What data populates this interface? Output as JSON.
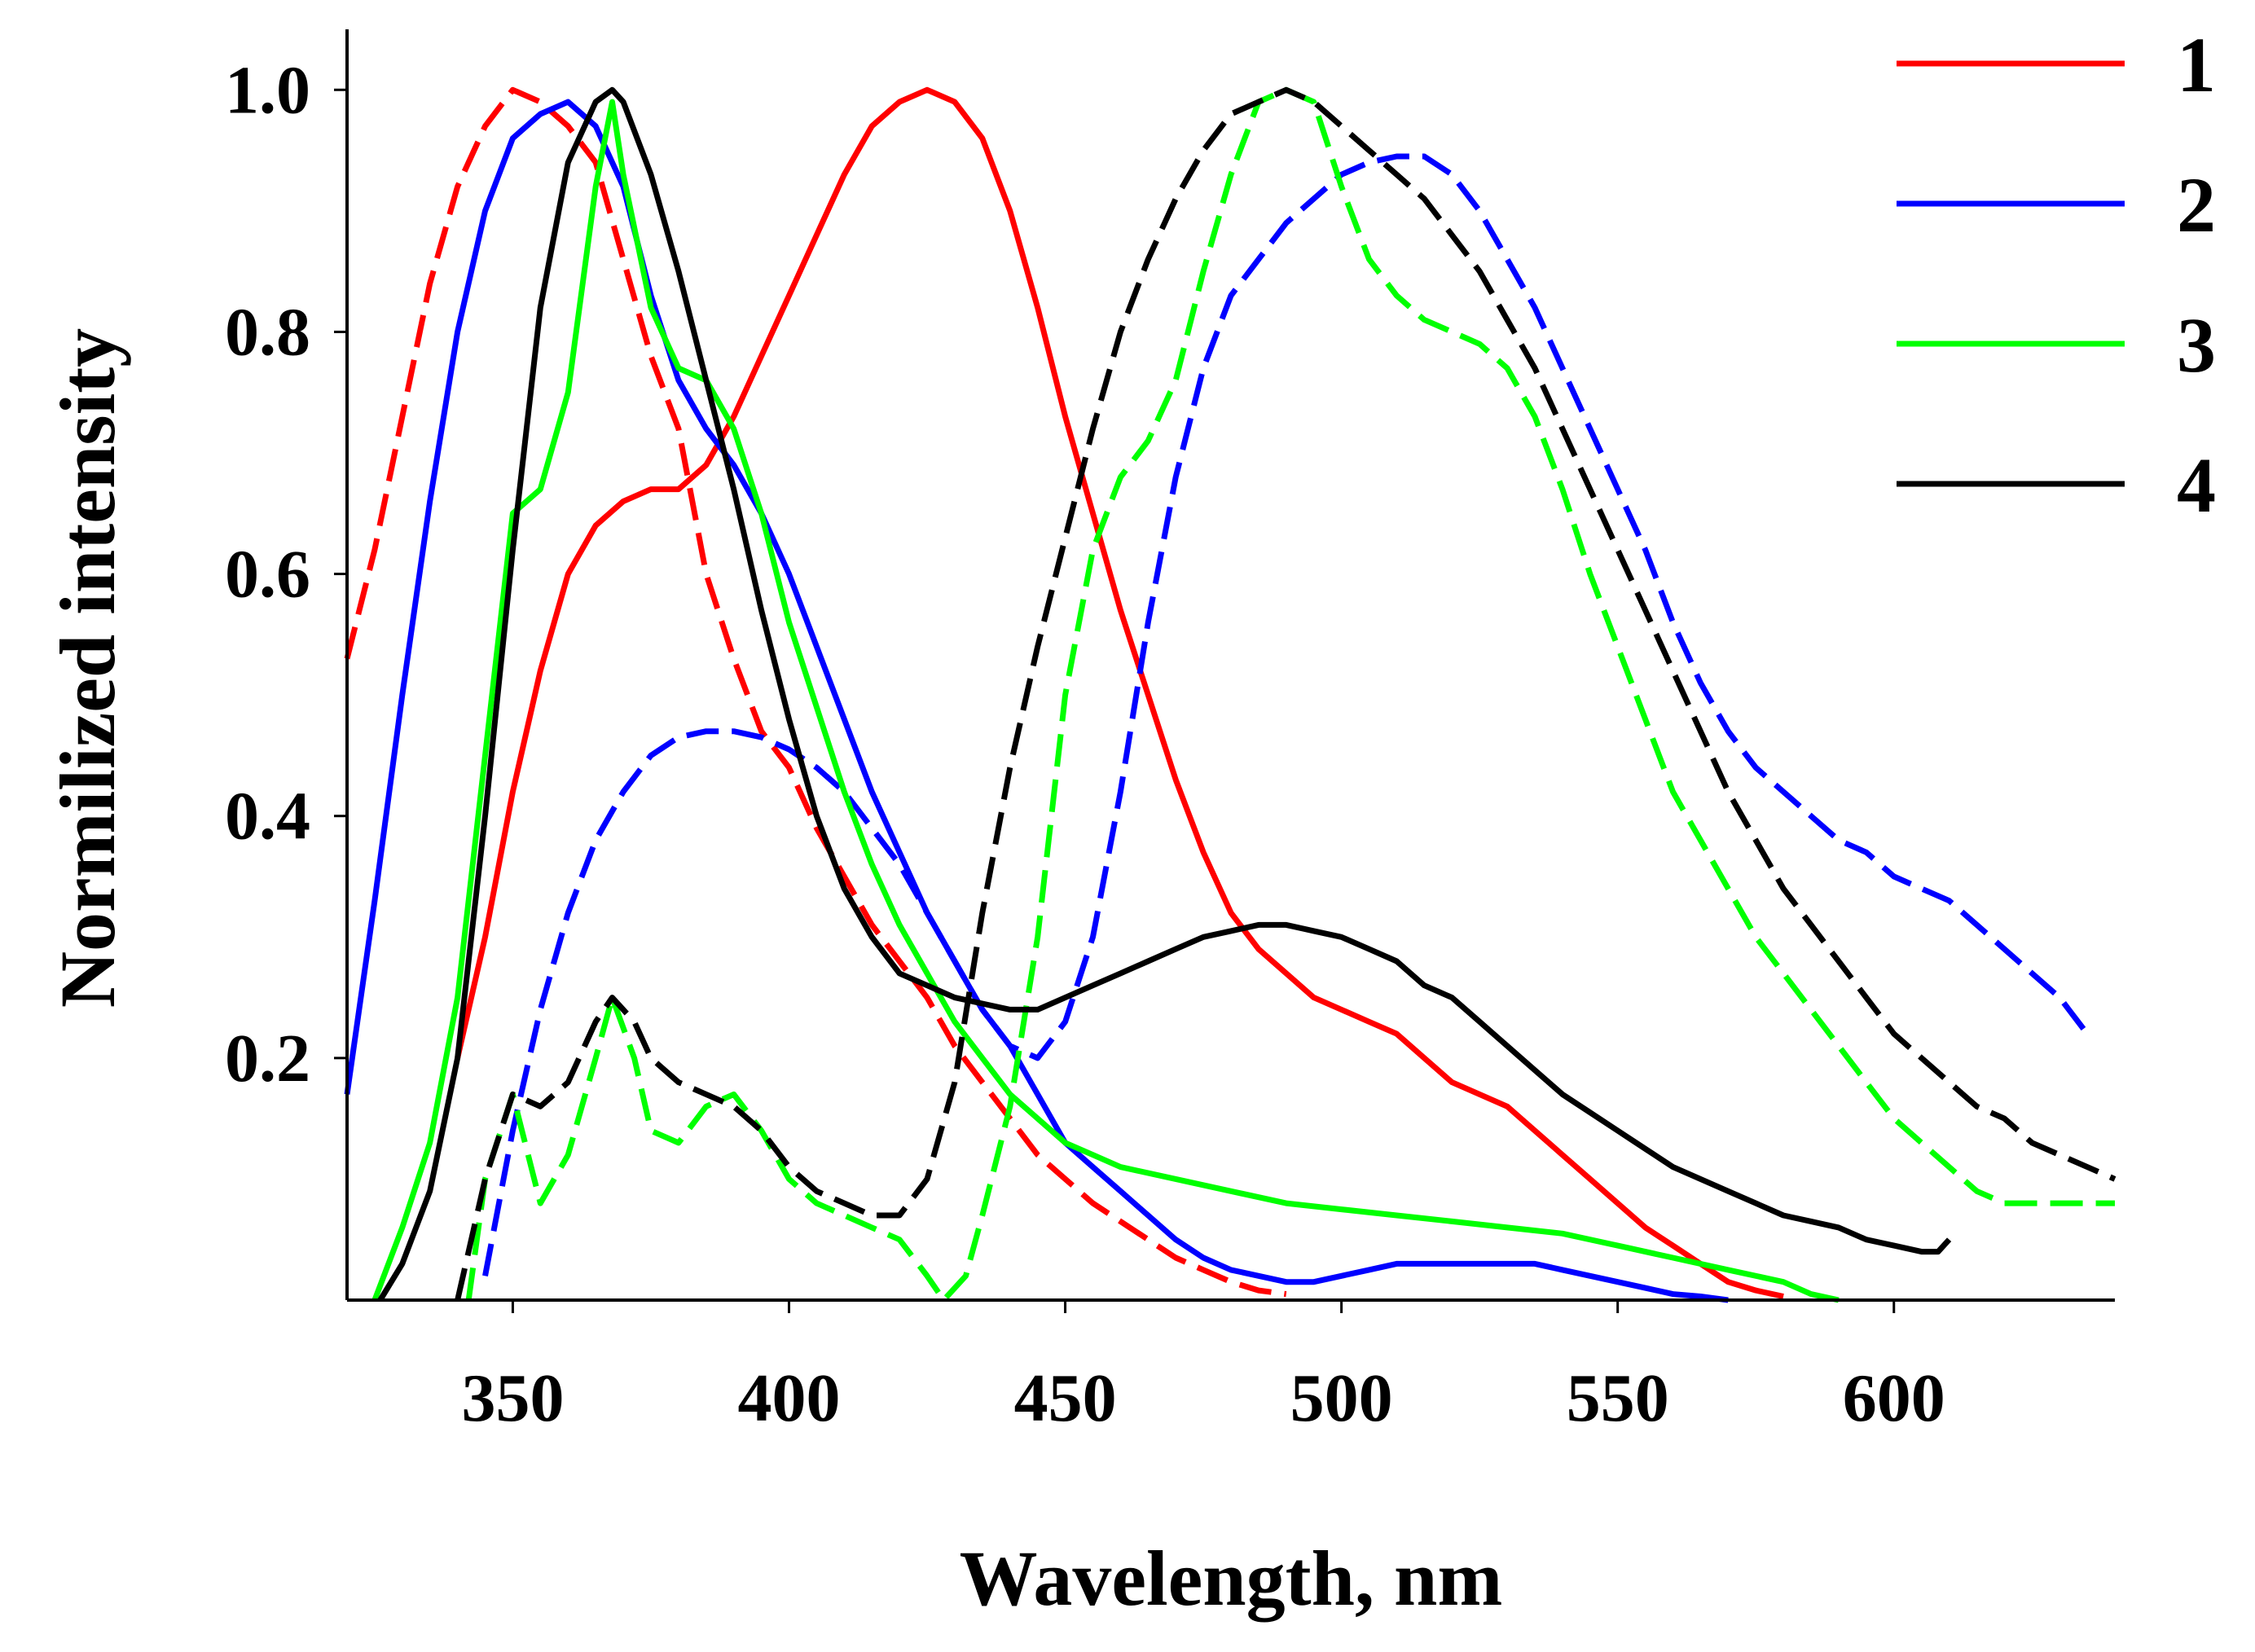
{
  "chart_data": {
    "type": "line",
    "title": "",
    "xlabel": "Wavelength, nm",
    "ylabel": "Normilized intensity",
    "xlim": [
      320,
      640
    ],
    "ylim": [
      0.0,
      1.05
    ],
    "xticks": [
      350,
      400,
      450,
      500,
      550,
      600
    ],
    "yticks": [
      0.2,
      0.4,
      0.6,
      0.8,
      1.0
    ],
    "xtick_labels": [
      "350",
      "400",
      "450",
      "500",
      "550",
      "600"
    ],
    "ytick_labels": [
      "0.2",
      "0.4",
      "0.6",
      "0.8",
      "1.0"
    ],
    "legend_position": "top-right",
    "grid": false,
    "series": [
      {
        "name": "1",
        "curve": "excitation",
        "color": "#ff0000",
        "style": "dashed",
        "x": [
          320,
          325,
          330,
          335,
          340,
          345,
          350,
          355,
          360,
          365,
          370,
          375,
          380,
          385,
          390,
          395,
          400,
          405,
          410,
          415,
          420,
          425,
          430,
          435,
          440,
          445,
          450,
          455,
          460,
          465,
          470,
          475,
          480,
          485,
          490
        ],
        "y": [
          0.53,
          0.62,
          0.73,
          0.84,
          0.92,
          0.97,
          1.0,
          0.99,
          0.97,
          0.94,
          0.86,
          0.78,
          0.72,
          0.6,
          0.53,
          0.47,
          0.44,
          0.39,
          0.35,
          0.31,
          0.28,
          0.25,
          0.21,
          0.18,
          0.15,
          0.12,
          0.1,
          0.08,
          0.065,
          0.05,
          0.035,
          0.025,
          0.015,
          0.008,
          0.005
        ]
      },
      {
        "name": "1",
        "curve": "emission",
        "color": "#ff0000",
        "style": "solid",
        "x": [
          340,
          345,
          350,
          355,
          360,
          365,
          370,
          375,
          380,
          385,
          390,
          395,
          400,
          405,
          410,
          415,
          420,
          425,
          430,
          435,
          440,
          445,
          450,
          455,
          460,
          465,
          470,
          475,
          480,
          485,
          490,
          495,
          500,
          505,
          510,
          515,
          520,
          525,
          530,
          535,
          540,
          545,
          550,
          555,
          560,
          565,
          570,
          575,
          580
        ],
        "y": [
          0.2,
          0.3,
          0.42,
          0.52,
          0.6,
          0.64,
          0.66,
          0.67,
          0.67,
          0.69,
          0.73,
          0.78,
          0.83,
          0.88,
          0.93,
          0.97,
          0.99,
          1.0,
          0.99,
          0.96,
          0.9,
          0.82,
          0.73,
          0.65,
          0.57,
          0.5,
          0.43,
          0.37,
          0.32,
          0.29,
          0.27,
          0.25,
          0.24,
          0.23,
          0.22,
          0.2,
          0.18,
          0.17,
          0.16,
          0.14,
          0.12,
          0.1,
          0.08,
          0.06,
          0.045,
          0.03,
          0.015,
          0.008,
          0.003
        ]
      },
      {
        "name": "2",
        "curve": "excitation",
        "color": "#0000ff",
        "style": "solid",
        "x": [
          320,
          325,
          330,
          335,
          340,
          345,
          350,
          355,
          360,
          365,
          370,
          375,
          380,
          385,
          390,
          395,
          400,
          405,
          410,
          415,
          420,
          425,
          430,
          435,
          440,
          445,
          450,
          455,
          460,
          465,
          470,
          475,
          480,
          485,
          490,
          495,
          500,
          505,
          510,
          515,
          520,
          525,
          530,
          535,
          540,
          545,
          550,
          555,
          560,
          565,
          570
        ],
        "y": [
          0.17,
          0.33,
          0.5,
          0.66,
          0.8,
          0.9,
          0.96,
          0.98,
          0.99,
          0.97,
          0.92,
          0.83,
          0.76,
          0.72,
          0.69,
          0.65,
          0.6,
          0.54,
          0.48,
          0.42,
          0.37,
          0.32,
          0.28,
          0.24,
          0.21,
          0.17,
          0.13,
          0.11,
          0.09,
          0.07,
          0.05,
          0.035,
          0.025,
          0.02,
          0.015,
          0.015,
          0.02,
          0.025,
          0.03,
          0.03,
          0.03,
          0.03,
          0.03,
          0.03,
          0.025,
          0.02,
          0.015,
          0.01,
          0.005,
          0.003,
          0.0
        ]
      },
      {
        "name": "2",
        "curve": "emission",
        "color": "#0000ff",
        "style": "dashed",
        "x": [
          345,
          350,
          355,
          360,
          365,
          370,
          375,
          380,
          385,
          390,
          395,
          400,
          405,
          410,
          415,
          420,
          425,
          430,
          435,
          440,
          445,
          450,
          455,
          460,
          465,
          470,
          475,
          480,
          485,
          490,
          495,
          500,
          505,
          510,
          515,
          520,
          525,
          530,
          535,
          540,
          545,
          550,
          555,
          560,
          565,
          570,
          575,
          580,
          585,
          590,
          595,
          600,
          605,
          610,
          615,
          620,
          625,
          630,
          635
        ],
        "y": [
          0.02,
          0.14,
          0.24,
          0.32,
          0.38,
          0.42,
          0.45,
          0.465,
          0.47,
          0.47,
          0.465,
          0.455,
          0.44,
          0.42,
          0.39,
          0.36,
          0.32,
          0.28,
          0.24,
          0.21,
          0.2,
          0.23,
          0.3,
          0.42,
          0.56,
          0.68,
          0.77,
          0.83,
          0.86,
          0.89,
          0.91,
          0.93,
          0.94,
          0.945,
          0.945,
          0.93,
          0.9,
          0.86,
          0.82,
          0.77,
          0.72,
          0.67,
          0.62,
          0.56,
          0.51,
          0.47,
          0.44,
          0.42,
          0.4,
          0.38,
          0.37,
          0.35,
          0.34,
          0.33,
          0.31,
          0.29,
          0.27,
          0.25,
          0.22
        ]
      },
      {
        "name": "3",
        "curve": "excitation",
        "color": "#00ff00",
        "style": "solid",
        "x": [
          325,
          330,
          335,
          340,
          345,
          350,
          355,
          360,
          365,
          368,
          370,
          375,
          380,
          385,
          390,
          395,
          400,
          405,
          410,
          415,
          420,
          425,
          430,
          435,
          440,
          445,
          450,
          455,
          460,
          470,
          480,
          490,
          500,
          510,
          520,
          530,
          540,
          550,
          560,
          570,
          580,
          585,
          590
        ],
        "y": [
          0.0,
          0.06,
          0.13,
          0.25,
          0.45,
          0.65,
          0.67,
          0.75,
          0.92,
          0.99,
          0.93,
          0.82,
          0.77,
          0.76,
          0.72,
          0.65,
          0.56,
          0.49,
          0.42,
          0.36,
          0.31,
          0.27,
          0.23,
          0.2,
          0.17,
          0.15,
          0.13,
          0.12,
          0.11,
          0.1,
          0.09,
          0.08,
          0.075,
          0.07,
          0.065,
          0.06,
          0.055,
          0.045,
          0.035,
          0.025,
          0.015,
          0.005,
          0.0
        ]
      },
      {
        "name": "3",
        "curve": "emission",
        "color": "#00ff00",
        "style": "dashed",
        "x": [
          342,
          345,
          350,
          355,
          360,
          365,
          368,
          372,
          375,
          380,
          385,
          390,
          395,
          400,
          405,
          410,
          415,
          420,
          425,
          428,
          432,
          435,
          440,
          445,
          450,
          455,
          460,
          465,
          470,
          475,
          480,
          485,
          490,
          495,
          500,
          505,
          510,
          515,
          520,
          525,
          530,
          535,
          540,
          545,
          550,
          555,
          560,
          565,
          570,
          575,
          580,
          585,
          590,
          595,
          600,
          605,
          610,
          615,
          620,
          625,
          630,
          635,
          640
        ],
        "y": [
          0.0,
          0.1,
          0.17,
          0.08,
          0.12,
          0.2,
          0.25,
          0.2,
          0.14,
          0.13,
          0.16,
          0.17,
          0.14,
          0.1,
          0.08,
          0.07,
          0.06,
          0.05,
          0.02,
          0.0,
          0.02,
          0.07,
          0.16,
          0.3,
          0.5,
          0.62,
          0.68,
          0.71,
          0.76,
          0.85,
          0.93,
          0.99,
          1.0,
          0.99,
          0.92,
          0.86,
          0.83,
          0.81,
          0.8,
          0.79,
          0.77,
          0.73,
          0.67,
          0.6,
          0.54,
          0.48,
          0.42,
          0.38,
          0.34,
          0.3,
          0.27,
          0.24,
          0.21,
          0.18,
          0.15,
          0.13,
          0.11,
          0.09,
          0.08,
          0.08,
          0.08,
          0.08,
          0.08
        ]
      },
      {
        "name": "4",
        "curve": "excitation",
        "color": "#000000",
        "style": "solid",
        "x": [
          326,
          330,
          335,
          340,
          345,
          350,
          355,
          360,
          365,
          368,
          370,
          375,
          380,
          385,
          390,
          395,
          400,
          405,
          410,
          415,
          420,
          425,
          430,
          435,
          440,
          445,
          450,
          455,
          460,
          465,
          470,
          475,
          480,
          485,
          490,
          495,
          500,
          505,
          510,
          515,
          520,
          525,
          530,
          535,
          540,
          545,
          550,
          555,
          560,
          565,
          570,
          575,
          580,
          585,
          590,
          595,
          600,
          605,
          608,
          610
        ],
        "y": [
          0.0,
          0.03,
          0.09,
          0.2,
          0.4,
          0.62,
          0.82,
          0.94,
          0.99,
          1.0,
          0.99,
          0.93,
          0.85,
          0.76,
          0.67,
          0.57,
          0.48,
          0.4,
          0.34,
          0.3,
          0.27,
          0.26,
          0.25,
          0.245,
          0.24,
          0.24,
          0.25,
          0.26,
          0.27,
          0.28,
          0.29,
          0.3,
          0.305,
          0.31,
          0.31,
          0.305,
          0.3,
          0.29,
          0.28,
          0.26,
          0.25,
          0.23,
          0.21,
          0.19,
          0.17,
          0.155,
          0.14,
          0.125,
          0.11,
          0.1,
          0.09,
          0.08,
          0.07,
          0.065,
          0.06,
          0.05,
          0.045,
          0.04,
          0.04,
          0.05
        ]
      },
      {
        "name": "4",
        "curve": "emission",
        "color": "#000000",
        "style": "dashed",
        "x": [
          340,
          345,
          350,
          355,
          360,
          365,
          368,
          372,
          375,
          380,
          385,
          390,
          395,
          400,
          405,
          410,
          415,
          420,
          425,
          430,
          435,
          440,
          445,
          450,
          455,
          460,
          465,
          470,
          475,
          480,
          485,
          490,
          495,
          500,
          505,
          510,
          515,
          520,
          525,
          530,
          535,
          540,
          545,
          550,
          555,
          560,
          565,
          570,
          575,
          580,
          585,
          590,
          595,
          600,
          605,
          610,
          615,
          620,
          625,
          630,
          635,
          640
        ],
        "y": [
          0.0,
          0.1,
          0.17,
          0.16,
          0.18,
          0.23,
          0.25,
          0.23,
          0.2,
          0.18,
          0.17,
          0.16,
          0.14,
          0.11,
          0.09,
          0.08,
          0.07,
          0.07,
          0.1,
          0.18,
          0.32,
          0.44,
          0.54,
          0.63,
          0.72,
          0.8,
          0.86,
          0.91,
          0.95,
          0.98,
          0.99,
          1.0,
          0.99,
          0.97,
          0.95,
          0.93,
          0.91,
          0.88,
          0.85,
          0.81,
          0.77,
          0.72,
          0.67,
          0.62,
          0.57,
          0.52,
          0.47,
          0.42,
          0.38,
          0.34,
          0.31,
          0.28,
          0.25,
          0.22,
          0.2,
          0.18,
          0.16,
          0.15,
          0.13,
          0.12,
          0.11,
          0.1
        ]
      }
    ],
    "legend": [
      {
        "label": "1",
        "color": "#ff0000"
      },
      {
        "label": "2",
        "color": "#0000ff"
      },
      {
        "label": "3",
        "color": "#00ff00"
      },
      {
        "label": "4",
        "color": "#000000"
      }
    ]
  }
}
